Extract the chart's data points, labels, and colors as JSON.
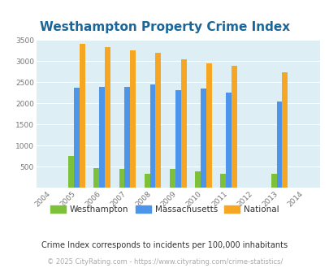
{
  "title": "Westhampton Property Crime Index",
  "all_years": [
    2004,
    2005,
    2006,
    2007,
    2008,
    2009,
    2010,
    2011,
    2012,
    2013,
    2014
  ],
  "data_years": [
    2005,
    2006,
    2007,
    2008,
    2009,
    2010,
    2011,
    2013
  ],
  "westhampton": [
    760,
    470,
    450,
    330,
    450,
    390,
    330,
    320
  ],
  "massachusetts": [
    2370,
    2395,
    2400,
    2440,
    2320,
    2360,
    2255,
    2040
  ],
  "national": [
    3420,
    3340,
    3260,
    3200,
    3040,
    2960,
    2900,
    2730
  ],
  "bar_width": 0.22,
  "color_westhampton": "#7dc13a",
  "color_massachusetts": "#4d94eb",
  "color_national": "#f5a623",
  "bg_color": "#ddeef5",
  "ylim": [
    0,
    3500
  ],
  "yticks": [
    0,
    500,
    1000,
    1500,
    2000,
    2500,
    3000,
    3500
  ],
  "title_color": "#1a6699",
  "title_fontsize": 11,
  "subtitle": "Crime Index corresponds to incidents per 100,000 inhabitants",
  "subtitle_color": "#333333",
  "footer": "© 2025 CityRating.com - https://www.cityrating.com/crime-statistics/",
  "footer_color": "#aaaaaa",
  "legend_labels": [
    "Westhampton",
    "Massachusetts",
    "National"
  ],
  "grid_color": "#ffffff",
  "axis_label_color": "#777777"
}
